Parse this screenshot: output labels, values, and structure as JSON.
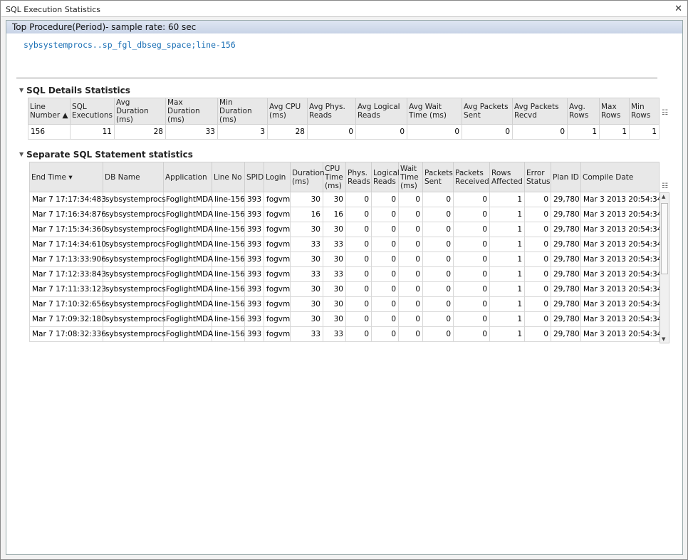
{
  "window": {
    "title": "SQL Execution Statistics",
    "close_icon": "close-icon"
  },
  "panel": {
    "title": "Top Procedure(Period)- sample rate: 60 sec",
    "sql_name": "sybsystemprocs..sp_fgl_dbseg_space;line-156"
  },
  "details": {
    "title": "SQL Details Statistics",
    "columns": [
      "Line Number ▲",
      "SQL Executions",
      "Avg Duration (ms)",
      "Max Duration (ms)",
      "Min Duration (ms)",
      "Avg CPU (ms)",
      "Avg Phys. Reads",
      "Avg Logical Reads",
      "Avg Wait Time (ms)",
      "Avg Packets Sent",
      "Avg Packets Recvd",
      "Avg. Rows",
      "Max Rows",
      "Min Rows"
    ],
    "rows": [
      [
        "156",
        "11",
        "28",
        "33",
        "3",
        "28",
        "0",
        "0",
        "0",
        "0",
        "0",
        "1",
        "1",
        "1"
      ]
    ]
  },
  "statements": {
    "title": "Separate SQL Statement statistics",
    "columns": [
      "End Time ▾",
      "DB Name",
      "Application",
      "Line No",
      "SPID",
      "Login",
      "Duration (ms)",
      "CPU Time (ms)",
      "Phys. Reads",
      "Logical Reads",
      "Wait Time (ms)",
      "Packets Sent",
      "Packets Received",
      "Rows Affected",
      "Error Status",
      "Plan ID",
      "Compile Date"
    ],
    "rows": [
      [
        "Mar 7 17:17:34:483",
        "sybsystemprocs",
        "FoglightMDA",
        "line-156",
        "393",
        "fogvm",
        "30",
        "30",
        "0",
        "0",
        "0",
        "0",
        "0",
        "1",
        "0",
        "29,780",
        "Mar 3 2013 20:54:34"
      ],
      [
        "Mar 7 17:16:34:876",
        "sybsystemprocs",
        "FoglightMDA",
        "line-156",
        "393",
        "fogvm",
        "16",
        "16",
        "0",
        "0",
        "0",
        "0",
        "0",
        "1",
        "0",
        "29,780",
        "Mar 3 2013 20:54:34"
      ],
      [
        "Mar 7 17:15:34:360",
        "sybsystemprocs",
        "FoglightMDA",
        "line-156",
        "393",
        "fogvm",
        "30",
        "30",
        "0",
        "0",
        "0",
        "0",
        "0",
        "1",
        "0",
        "29,780",
        "Mar 3 2013 20:54:34"
      ],
      [
        "Mar 7 17:14:34:610",
        "sybsystemprocs",
        "FoglightMDA",
        "line-156",
        "393",
        "fogvm",
        "33",
        "33",
        "0",
        "0",
        "0",
        "0",
        "0",
        "1",
        "0",
        "29,780",
        "Mar 3 2013 20:54:34"
      ],
      [
        "Mar 7 17:13:33:906",
        "sybsystemprocs",
        "FoglightMDA",
        "line-156",
        "393",
        "fogvm",
        "30",
        "30",
        "0",
        "0",
        "0",
        "0",
        "0",
        "1",
        "0",
        "29,780",
        "Mar 3 2013 20:54:34"
      ],
      [
        "Mar 7 17:12:33:843",
        "sybsystemprocs",
        "FoglightMDA",
        "line-156",
        "393",
        "fogvm",
        "33",
        "33",
        "0",
        "0",
        "0",
        "0",
        "0",
        "1",
        "0",
        "29,780",
        "Mar 3 2013 20:54:34"
      ],
      [
        "Mar 7 17:11:33:123",
        "sybsystemprocs",
        "FoglightMDA",
        "line-156",
        "393",
        "fogvm",
        "30",
        "30",
        "0",
        "0",
        "0",
        "0",
        "0",
        "1",
        "0",
        "29,780",
        "Mar 3 2013 20:54:34"
      ],
      [
        "Mar 7 17:10:32:656",
        "sybsystemprocs",
        "FoglightMDA",
        "line-156",
        "393",
        "fogvm",
        "30",
        "30",
        "0",
        "0",
        "0",
        "0",
        "0",
        "1",
        "0",
        "29,780",
        "Mar 3 2013 20:54:34"
      ],
      [
        "Mar 7 17:09:32:180",
        "sybsystemprocs",
        "FoglightMDA",
        "line-156",
        "393",
        "fogvm",
        "30",
        "30",
        "0",
        "0",
        "0",
        "0",
        "0",
        "1",
        "0",
        "29,780",
        "Mar 3 2013 20:54:34"
      ],
      [
        "Mar 7 17:08:32:336",
        "sybsystemprocs",
        "FoglightMDA",
        "line-156",
        "393",
        "fogvm",
        "33",
        "33",
        "0",
        "0",
        "0",
        "0",
        "0",
        "1",
        "0",
        "29,780",
        "Mar 3 2013 20:54:34"
      ]
    ]
  }
}
